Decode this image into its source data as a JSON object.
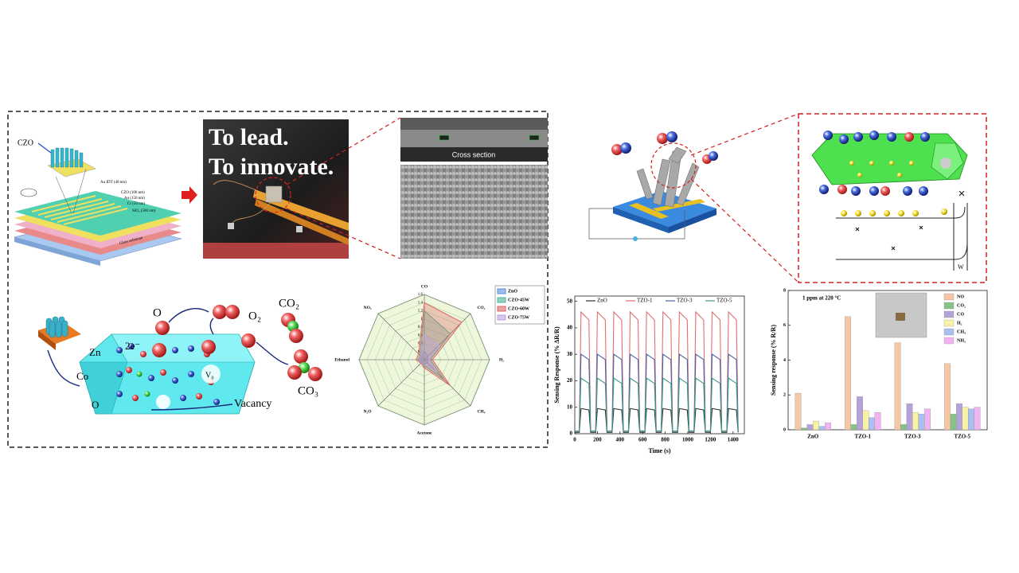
{
  "figure": {
    "device": {
      "czo": "CZO",
      "layers": [
        "Au IDT (40 nm)",
        "CZO (100 nm)",
        "Au (150 nm)",
        "Cr (50 nm)",
        "SiO₂ (500 nm)"
      ],
      "substrate": "Glass substrate"
    },
    "photo": {
      "line1": "To lead.",
      "line2": "To innovate."
    },
    "sem": {
      "label": "Cross section"
    },
    "mechanism": {
      "electrons": "2e⁻",
      "o": "O",
      "o2": "O₂",
      "co2": "CO₂",
      "zn": "Zn",
      "co": "Co",
      "o_atom": "O",
      "vacancy_symbol": "V₀",
      "co3": "CO₃",
      "vacancy": "Vacancy"
    },
    "schematic": {
      "width": "W"
    }
  },
  "chart_data": [
    {
      "type": "radar",
      "axes": [
        "CO",
        "CO₂",
        "H₂",
        "CH₄",
        "Acetone",
        "N₂O",
        "Ethanol",
        "NO₂"
      ],
      "rlim": [
        0,
        1.6
      ],
      "rticks": [
        0.2,
        0.4,
        0.6,
        0.8,
        1,
        1.2,
        1.4,
        1.6
      ],
      "series": [
        {
          "name": "ZnO",
          "color": "#5b8fd6",
          "values": [
            0.2,
            0.12,
            0.08,
            0.12,
            0.1,
            0.08,
            0.1,
            0.1
          ]
        },
        {
          "name": "CZO-45W",
          "color": "#4fb39a",
          "values": [
            1.2,
            0.9,
            0.15,
            0.7,
            0.15,
            0.1,
            0.15,
            0.15
          ]
        },
        {
          "name": "CZO-60W",
          "color": "#e06666",
          "values": [
            1.4,
            1.3,
            0.2,
            0.9,
            0.2,
            0.12,
            0.2,
            0.2
          ]
        },
        {
          "name": "CZO-75W",
          "color": "#b9a2e0",
          "values": [
            0.6,
            0.5,
            0.12,
            0.4,
            0.12,
            0.1,
            0.12,
            0.12
          ]
        }
      ]
    },
    {
      "type": "line",
      "xlabel": "Time (s)",
      "ylabel": "Sensing Response (% ΔR/R)",
      "x": [
        0,
        40,
        55,
        125,
        140,
        185,
        200,
        270,
        285,
        330,
        345,
        415,
        430,
        475,
        490,
        560,
        575,
        620,
        635,
        705,
        720,
        765,
        780,
        850,
        865,
        910,
        925,
        995,
        1010,
        1055,
        1070,
        1140,
        1155,
        1200,
        1215,
        1285,
        1300,
        1345,
        1360,
        1430,
        1445
      ],
      "xlim": [
        0,
        1500
      ],
      "xticks": [
        0,
        200,
        400,
        600,
        800,
        1000,
        1200,
        1400
      ],
      "ylim": [
        0,
        52
      ],
      "yticks": [
        0,
        10,
        20,
        30,
        40,
        50
      ],
      "series": [
        {
          "name": "ZnO",
          "color": "#333333",
          "values": [
            0.5,
            0.5,
            9.5,
            9,
            0.5,
            0.5,
            9.5,
            9,
            0.5,
            0.5,
            9.5,
            9,
            0.5,
            0.5,
            9.5,
            9,
            0.5,
            0.5,
            9.5,
            9,
            0.5,
            0.5,
            9.5,
            9,
            0.5,
            0.5,
            9.5,
            9,
            0.5,
            0.5,
            9.5,
            9,
            0.5,
            0.5,
            9.5,
            9,
            0.5,
            0.5,
            9.5,
            9,
            0.5
          ]
        },
        {
          "name": "TZO-1",
          "color": "#e07070",
          "values": [
            1,
            1,
            46,
            43,
            1,
            1,
            46,
            43,
            1,
            1,
            46,
            43,
            1,
            1,
            46,
            43,
            1,
            1,
            46,
            43,
            1,
            1,
            46,
            43,
            1,
            1,
            46,
            43,
            1,
            1,
            46,
            43,
            1,
            1,
            46,
            43,
            1,
            1,
            46,
            43,
            1
          ]
        },
        {
          "name": "TZO-3",
          "color": "#4a64a8",
          "values": [
            1,
            1,
            30,
            28,
            1,
            1,
            30,
            28,
            1,
            1,
            30,
            28,
            1,
            1,
            30,
            28,
            1,
            1,
            30,
            28,
            1,
            1,
            30,
            28,
            1,
            1,
            30,
            28,
            1,
            1,
            30,
            28,
            1,
            1,
            30,
            28,
            1,
            1,
            30,
            28,
            1
          ]
        },
        {
          "name": "TZO-5",
          "color": "#3a9c88",
          "values": [
            1,
            1,
            21,
            19,
            1,
            1,
            21,
            19,
            1,
            1,
            21,
            19,
            1,
            1,
            21,
            19,
            1,
            1,
            21,
            19,
            1,
            1,
            21,
            19,
            1,
            1,
            21,
            19,
            1,
            1,
            21,
            19,
            1,
            1,
            21,
            19,
            1,
            1,
            21,
            19,
            1
          ]
        }
      ]
    },
    {
      "type": "bar",
      "annotation": "1 ppm at 220 °C",
      "ylabel": "Sensing response (% R/R)",
      "categories": [
        "ZnO",
        "TZO-1",
        "TZO-3",
        "TZO-5"
      ],
      "ylim": [
        0,
        8
      ],
      "yticks": [
        0,
        2,
        4,
        6,
        8
      ],
      "series": [
        {
          "name": "NO",
          "color": "#f6c7a4",
          "values": [
            2.1,
            6.5,
            5.0,
            3.8
          ]
        },
        {
          "name": "CO₂",
          "color": "#86c286",
          "values": [
            0.1,
            0.3,
            0.3,
            0.9
          ]
        },
        {
          "name": "CO",
          "color": "#b6a2da",
          "values": [
            0.3,
            1.9,
            1.5,
            1.5
          ]
        },
        {
          "name": "H₂",
          "color": "#f7f2a6",
          "values": [
            0.5,
            1.1,
            1.0,
            1.3
          ]
        },
        {
          "name": "CH₄",
          "color": "#a9c0f0",
          "values": [
            0.2,
            0.7,
            0.9,
            1.2
          ]
        },
        {
          "name": "NH₃",
          "color": "#f1b3f1",
          "values": [
            0.4,
            1.0,
            1.2,
            1.3
          ]
        }
      ]
    }
  ]
}
